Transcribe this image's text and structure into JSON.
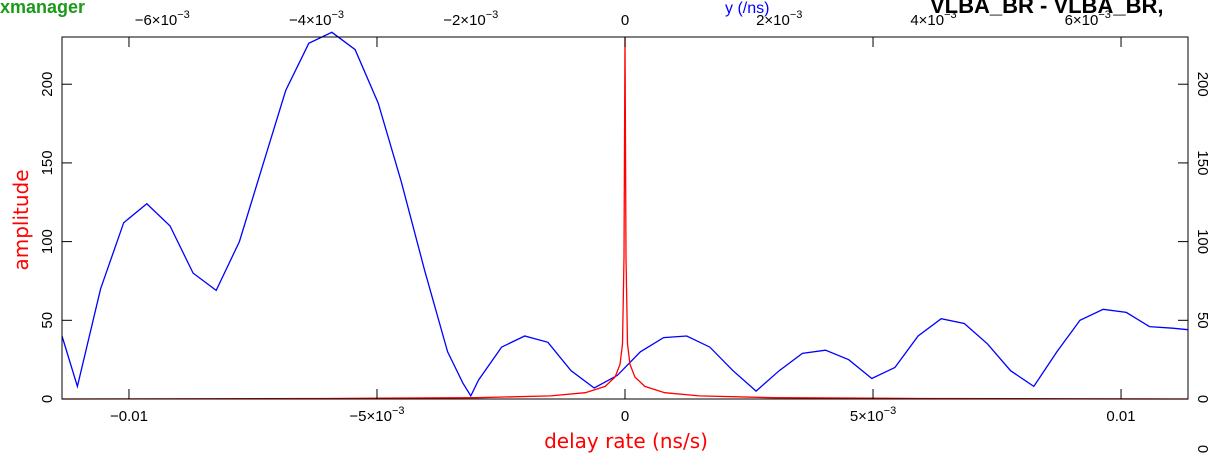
{
  "header": {
    "app_name": "xmanager",
    "top_axis_title": "y (/ns)",
    "baseline_label": "VLBA_BR - VLBA_BR,"
  },
  "colors": {
    "amplitude": "#ff0000",
    "phase_curve": "#0000ff",
    "axes": "#000000",
    "app_name": "#1a9a1a"
  },
  "chart_data": {
    "type": "line",
    "xlabel": "delay rate (ns/s)",
    "ylabel": "amplitude",
    "xlim": [
      -0.01135,
      0.01135
    ],
    "ylim": [
      0,
      230
    ],
    "top_xlim": [
      -0.0073,
      0.0073
    ],
    "grid": false,
    "bottom_ticks": [
      {
        "value": -0.01,
        "label": "−0.01"
      },
      {
        "value": -0.005,
        "label": "−5×10",
        "exp": "−3"
      },
      {
        "value": 0,
        "label": "0"
      },
      {
        "value": 0.005,
        "label": "5×10",
        "exp": "−3"
      },
      {
        "value": 0.01,
        "label": "0.01"
      }
    ],
    "top_ticks": [
      {
        "value": -0.006,
        "label": "−6×10",
        "exp": "−3"
      },
      {
        "value": -0.004,
        "label": "−4×10",
        "exp": "−3"
      },
      {
        "value": -0.002,
        "label": "−2×10",
        "exp": "−3"
      },
      {
        "value": 0,
        "label": "0"
      },
      {
        "value": 0.002,
        "label": "2×10",
        "exp": "−3"
      },
      {
        "value": 0.004,
        "label": "4×10",
        "exp": "−3"
      },
      {
        "value": 0.006,
        "label": "6×10",
        "exp": "−3"
      }
    ],
    "y_ticks": [
      {
        "value": 0,
        "label": "0"
      },
      {
        "value": 50,
        "label": "50"
      },
      {
        "value": 100,
        "label": "100"
      },
      {
        "value": 150,
        "label": "150"
      },
      {
        "value": 200,
        "label": "200"
      }
    ],
    "right_ticks": [
      {
        "value": 0,
        "label": "0"
      },
      {
        "value": 50,
        "label": "50"
      },
      {
        "value": 100,
        "label": "100"
      },
      {
        "value": 150,
        "label": "150"
      },
      {
        "value": 200,
        "label": "200"
      }
    ],
    "right_extra_label": "0",
    "series": [
      {
        "color": "#0000ff",
        "top_axis": true,
        "x": [
          -0.0073,
          -0.0071,
          -0.0068,
          -0.0065,
          -0.0062,
          -0.0059,
          -0.0056,
          -0.0053,
          -0.005,
          -0.0047,
          -0.0044,
          -0.0041,
          -0.0038,
          -0.0035,
          -0.0032,
          -0.0029,
          -0.0026,
          -0.0023,
          -0.0021,
          -0.002,
          -0.0019,
          -0.0016,
          -0.0013,
          -0.001,
          -0.0007,
          -0.0004,
          -0.0001,
          0.0002,
          0.0005,
          0.0008,
          0.0011,
          0.0014,
          0.0017,
          0.002,
          0.0023,
          0.0026,
          0.0029,
          0.0032,
          0.0035,
          0.0038,
          0.0041,
          0.0044,
          0.0047,
          0.005,
          0.0053,
          0.0056,
          0.0059,
          0.0062,
          0.0065,
          0.0068,
          0.0071,
          0.0073
        ],
        "y": [
          40,
          8,
          70,
          112,
          124,
          110,
          80,
          69,
          100,
          148,
          196,
          226,
          233,
          222,
          188,
          138,
          82,
          30,
          10,
          2,
          12,
          33,
          40,
          36,
          18,
          7,
          15,
          30,
          39,
          40,
          33,
          18,
          5,
          18,
          29,
          31,
          25,
          13,
          20,
          40,
          51,
          48,
          35,
          18,
          8,
          30,
          50,
          57,
          55,
          46,
          45,
          44
        ]
      },
      {
        "color": "#ff0000",
        "x": [
          -0.01135,
          -0.006,
          -0.003,
          -0.0015,
          -0.0008,
          -0.0004,
          -0.0002,
          -0.0001,
          -5e-05,
          -2e-05,
          0,
          2e-05,
          5e-05,
          0.0001,
          0.0002,
          0.0004,
          0.0008,
          0.0015,
          0.003,
          0.006,
          0.01135
        ],
        "y": [
          0,
          0.3,
          0.8,
          2,
          4,
          8,
          14,
          22,
          35,
          90,
          230,
          90,
          35,
          22,
          14,
          8,
          4,
          2,
          0.8,
          0.3,
          0
        ]
      }
    ]
  }
}
